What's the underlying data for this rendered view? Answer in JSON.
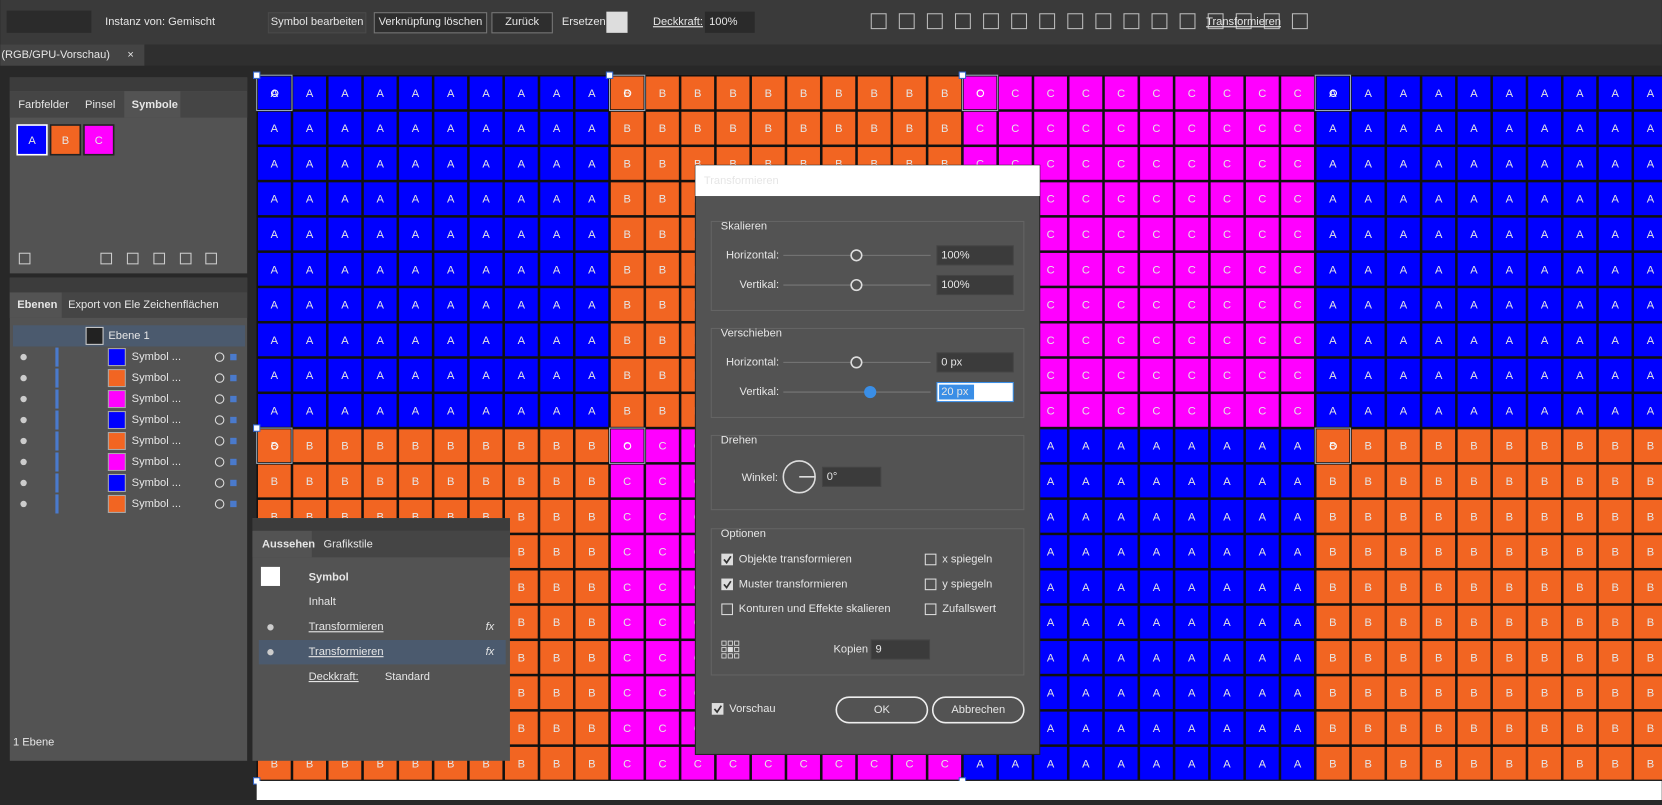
{
  "toolbar": {
    "instance_label": "Instanz von: Gemischt",
    "edit_symbol": "Symbol bearbeiten",
    "break_link": "Verknüpfung löschen",
    "reset": "Zurück",
    "replace_label": "Ersetzen:",
    "opacity_label": "Deckkraft:",
    "opacity_value": "100%",
    "transform": "Transformieren"
  },
  "document_tab": {
    "title": "(RGB/GPU-Vorschau)",
    "close": "×"
  },
  "symbols_panel": {
    "tabs": [
      "Farbfelder",
      "Pinsel",
      "Symbole"
    ],
    "swatches": [
      {
        "letter": "A",
        "color": "#0000ff"
      },
      {
        "letter": "B",
        "color": "#f26522"
      },
      {
        "letter": "C",
        "color": "#ff00ff"
      }
    ]
  },
  "layers_panel": {
    "tabs": [
      "Ebenen",
      "Export von Ele",
      "Zeichenflächen"
    ],
    "layer": "Ebene 1",
    "items": [
      {
        "name": "Symbol ...",
        "color": "#0000ff"
      },
      {
        "name": "Symbol ...",
        "color": "#f26522"
      },
      {
        "name": "Symbol ...",
        "color": "#ff00ff"
      },
      {
        "name": "Symbol ...",
        "color": "#0000ff"
      },
      {
        "name": "Symbol ...",
        "color": "#f26522"
      },
      {
        "name": "Symbol ...",
        "color": "#ff00ff"
      },
      {
        "name": "Symbol ...",
        "color": "#0000ff"
      },
      {
        "name": "Symbol ...",
        "color": "#f26522"
      }
    ],
    "footer": "1 Ebene"
  },
  "appearance_panel": {
    "tabs": [
      "Aussehen",
      "Grafikstile"
    ],
    "object": "Symbol",
    "content": "Inhalt",
    "effects": [
      "Transformieren",
      "Transformieren"
    ],
    "fx": "fx",
    "opacity_label": "Deckkraft:",
    "opacity_value": "Standard"
  },
  "canvas": {
    "rows": [
      [
        {
          "letter": "A",
          "color": "#0000ff"
        },
        {
          "letter": "B",
          "color": "#f26522"
        },
        {
          "letter": "C",
          "color": "#ff00ff"
        },
        {
          "letter": "A",
          "color": "#0000ff"
        }
      ],
      [
        {
          "letter": "B",
          "color": "#f26522"
        },
        {
          "letter": "C",
          "color": "#ff00ff"
        },
        {
          "letter": "A",
          "color": "#0000ff"
        },
        {
          "letter": "B",
          "color": "#f26522"
        }
      ]
    ]
  },
  "dialog": {
    "title": "Transformieren",
    "scale": {
      "heading": "Skalieren",
      "horizontal_label": "Horizontal:",
      "horizontal": "100%",
      "vertical_label": "Vertikal:",
      "vertical": "100%"
    },
    "move": {
      "heading": "Verschieben",
      "horizontal_label": "Horizontal:",
      "horizontal": "0 px",
      "vertical_label": "Vertikal:",
      "vertical": "20 px"
    },
    "rotate": {
      "heading": "Drehen",
      "angle_label": "Winkel:",
      "angle": "0°"
    },
    "options": {
      "heading": "Optionen",
      "checks": [
        {
          "label": "Objekte transformieren",
          "checked": true
        },
        {
          "label": "Muster transformieren",
          "checked": true
        },
        {
          "label": "Konturen und Effekte skalieren",
          "checked": false
        },
        {
          "label": "x spiegeln",
          "checked": false
        },
        {
          "label": "y spiegeln",
          "checked": false
        },
        {
          "label": "Zufallswert",
          "checked": false
        }
      ],
      "copies_label": "Kopien",
      "copies": "9"
    },
    "preview": {
      "label": "Vorschau",
      "checked": true
    },
    "ok": "OK",
    "cancel": "Abbrechen"
  }
}
